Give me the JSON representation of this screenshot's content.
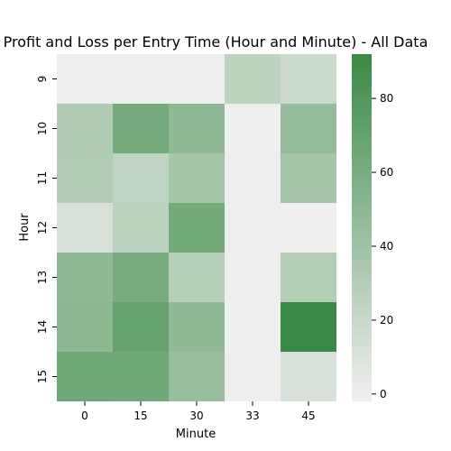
{
  "chart_data": {
    "type": "heatmap",
    "title": "Profit and Loss per Entry Time (Hour and Minute) - All Data",
    "xlabel": "Minute",
    "ylabel": "Hour",
    "x_categories": [
      "0",
      "15",
      "30",
      "33",
      "45"
    ],
    "y_categories": [
      "9",
      "10",
      "11",
      "12",
      "13",
      "14",
      "15"
    ],
    "values": [
      [
        0,
        0,
        0,
        25,
        18
      ],
      [
        32,
        62,
        48,
        0,
        46
      ],
      [
        31,
        24,
        37,
        0,
        37
      ],
      [
        12,
        25,
        63,
        0,
        -2
      ],
      [
        48,
        60,
        28,
        0,
        30
      ],
      [
        50,
        70,
        48,
        0,
        92
      ],
      [
        65,
        64,
        44,
        0,
        11
      ]
    ],
    "colorbar": {
      "min": -2,
      "max": 92,
      "ticks": [
        0,
        20,
        40,
        60,
        80
      ]
    },
    "colors": {
      "low": "#f0eeee",
      "mid": "#eeeeee",
      "high": "#3a8a45"
    }
  }
}
